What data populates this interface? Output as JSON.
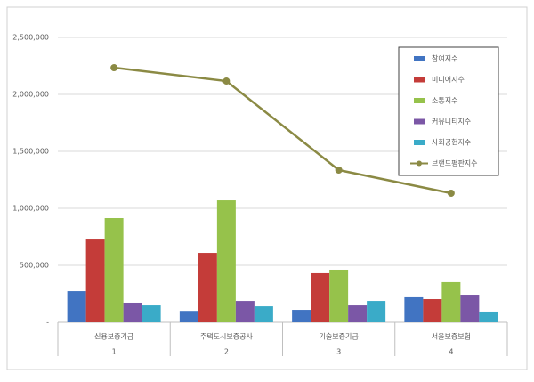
{
  "chart_data": {
    "type": "bar",
    "categories": [
      "신용보증기금",
      "주택도시보증공사",
      "기술보증기금",
      "서울보증보험"
    ],
    "category_numbers": [
      "1",
      "2",
      "3",
      "4"
    ],
    "series": [
      {
        "name": "참여지수",
        "color": "#4174c2",
        "values": [
          273000,
          100000,
          109000,
          227000
        ]
      },
      {
        "name": "미디어지수",
        "color": "#c43c39",
        "values": [
          734000,
          609000,
          430000,
          203000
        ]
      },
      {
        "name": "소통지수",
        "color": "#96c24b",
        "values": [
          914000,
          1070000,
          461000,
          352000
        ]
      },
      {
        "name": "커뮤니티지수",
        "color": "#7b57a6",
        "values": [
          172000,
          187000,
          148000,
          242000
        ]
      },
      {
        "name": "사회공헌지수",
        "color": "#3aabc8",
        "values": [
          148000,
          140000,
          187000,
          94000
        ]
      },
      {
        "name": "브랜드평판지수",
        "color": "#8b8a44",
        "type": "line",
        "values": [
          2234000,
          2117000,
          1336000,
          1133000
        ]
      }
    ],
    "ylim": [
      0,
      2500000
    ],
    "yticks": [
      {
        "value": 0,
        "label": "-"
      },
      {
        "value": 500000,
        "label": "500,000"
      },
      {
        "value": 1000000,
        "label": "1,000,000"
      },
      {
        "value": 1500000,
        "label": "1,500,000"
      },
      {
        "value": 2000000,
        "label": "2,000,000"
      },
      {
        "value": 2500000,
        "label": "2,500,000"
      }
    ],
    "grid": true,
    "legend_position": "top-right"
  }
}
